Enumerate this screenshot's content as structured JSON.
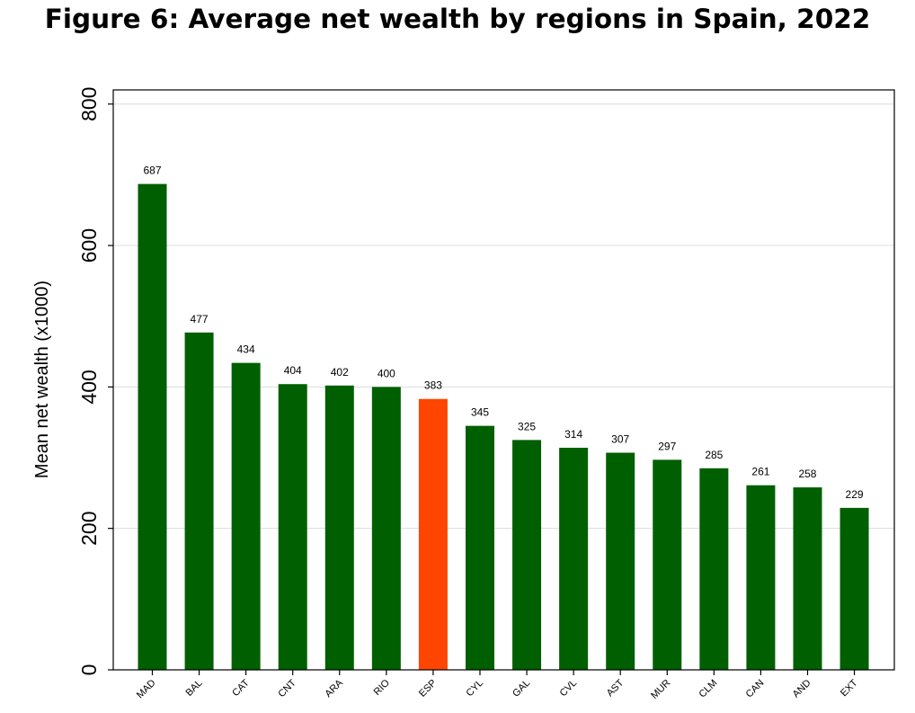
{
  "chart_data": {
    "type": "bar",
    "title": "Figure 6: Average net wealth by regions in Spain, 2022",
    "xlabel": "",
    "ylabel": "Mean net wealth (x1000)",
    "ylim": [
      0,
      820
    ],
    "yticks": [
      0,
      200,
      400,
      600,
      800
    ],
    "grid": true,
    "categories": [
      "MAD",
      "BAL",
      "CAT",
      "CNT",
      "ARA",
      "RIO",
      "ESP",
      "CYL",
      "GAL",
      "CVL",
      "AST",
      "MUR",
      "CLM",
      "CAN",
      "AND",
      "EXT"
    ],
    "values": [
      687,
      477,
      434,
      404,
      402,
      400,
      383,
      345,
      325,
      314,
      307,
      297,
      285,
      261,
      258,
      229
    ],
    "data_labels": [
      "687",
      "477",
      "434",
      "404",
      "402",
      "400",
      "383",
      "345",
      "325",
      "314",
      "307",
      "297",
      "285",
      "261",
      "258",
      "229"
    ],
    "highlight_category": "ESP",
    "colors": {
      "bar": "#005f00",
      "highlight": "#ff4500",
      "grid": "#dcdcdc",
      "axis": "#000000"
    }
  }
}
